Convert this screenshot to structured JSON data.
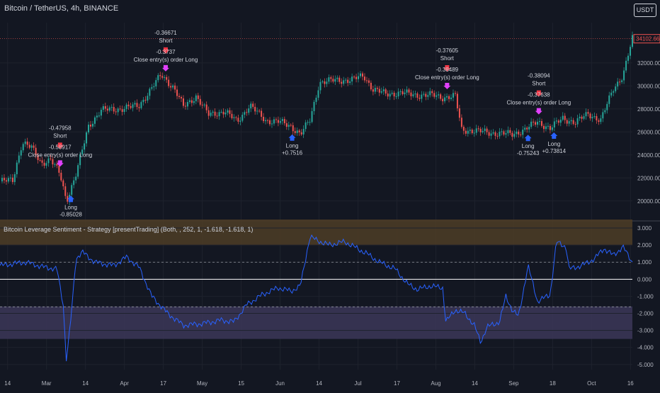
{
  "header": {
    "symbol": "Bitcoin / TetherUS, 4h, BINANCE",
    "currency": "USDT"
  },
  "indicator": {
    "title": "Bitcoin Leverage Sentiment - Strategy [presentTrading] (Both, , 252, 1, -1.618, -1.618, 1)"
  },
  "colors": {
    "background": "#131722",
    "grid": "#1e222d",
    "bull": "#26a69a",
    "bear": "#ef5350",
    "indicator_line": "#2962ff",
    "upper_band": "#4a3b26",
    "lower_band": "#3a3555",
    "short_arrow": "#f23645",
    "long_arrow": "#2962ff",
    "close_marker": "#e040fb"
  },
  "chart_data": [
    {
      "type": "line",
      "series_kind": "candlestick",
      "y_ticks": [
        "20000.00",
        "22000.00",
        "24000.00",
        "26000.00",
        "28000.00",
        "30000.00",
        "32000.00"
      ],
      "ylim": [
        19000,
        35500
      ],
      "last_price": "34102.66",
      "x": [
        "14",
        "Mar",
        "14",
        "Apr",
        "17",
        "May",
        "15",
        "Jun",
        "14",
        "Jul",
        "17",
        "Aug",
        "14",
        "Sep",
        "18",
        "Oct",
        "16"
      ],
      "price_path": [
        [
          0,
          21700
        ],
        [
          0.02,
          21800
        ],
        [
          0.035,
          25100
        ],
        [
          0.05,
          24600
        ],
        [
          0.065,
          23300
        ],
        [
          0.08,
          23600
        ],
        [
          0.095,
          22300
        ],
        [
          0.105,
          20000
        ],
        [
          0.12,
          22300
        ],
        [
          0.14,
          26500
        ],
        [
          0.16,
          27900
        ],
        [
          0.19,
          28000
        ],
        [
          0.22,
          28300
        ],
        [
          0.24,
          29800
        ],
        [
          0.255,
          31000
        ],
        [
          0.275,
          29800
        ],
        [
          0.29,
          28200
        ],
        [
          0.31,
          29100
        ],
        [
          0.33,
          27500
        ],
        [
          0.355,
          27800
        ],
        [
          0.375,
          26900
        ],
        [
          0.395,
          28300
        ],
        [
          0.42,
          27000
        ],
        [
          0.44,
          26900
        ],
        [
          0.46,
          26500
        ],
        [
          0.475,
          25800
        ],
        [
          0.49,
          27000
        ],
        [
          0.505,
          30300
        ],
        [
          0.53,
          30500
        ],
        [
          0.555,
          30500
        ],
        [
          0.575,
          30900
        ],
        [
          0.59,
          29700
        ],
        [
          0.61,
          29300
        ],
        [
          0.635,
          29400
        ],
        [
          0.66,
          29200
        ],
        [
          0.685,
          29200
        ],
        [
          0.7,
          29000
        ],
        [
          0.72,
          29100
        ],
        [
          0.73,
          26200
        ],
        [
          0.75,
          26100
        ],
        [
          0.78,
          25900
        ],
        [
          0.81,
          25800
        ],
        [
          0.83,
          26200
        ],
        [
          0.85,
          26900
        ],
        [
          0.87,
          26300
        ],
        [
          0.89,
          27200
        ],
        [
          0.91,
          26800
        ],
        [
          0.93,
          27600
        ],
        [
          0.95,
          27000
        ],
        [
          0.97,
          29800
        ],
        [
          0.985,
          30900
        ],
        [
          1.0,
          34100
        ]
      ],
      "signals": [
        {
          "side": "Short",
          "label": "Short",
          "value": "-0.47958",
          "pos": 0.095
        },
        {
          "side": "Close",
          "label": "Close entry(s) order Long",
          "value": "-0.58917",
          "pos": 0.095
        },
        {
          "side": "Long",
          "label": "Long",
          "value": "-0.85028",
          "pos": 0.112
        },
        {
          "side": "Short",
          "label": "Short",
          "value": "-0.36671",
          "pos": 0.262
        },
        {
          "side": "Close",
          "label": "Close entry(s) order Long",
          "value": "-0.3737",
          "pos": 0.262
        },
        {
          "side": "Long",
          "label": "Long",
          "value": "+0.7516",
          "pos": 0.462
        },
        {
          "side": "Short",
          "label": "Short",
          "value": "-0.37605",
          "pos": 0.707
        },
        {
          "side": "Close",
          "label": "Close entry(s) order Long",
          "value": "-0.38489",
          "pos": 0.707
        },
        {
          "side": "Short",
          "label": "Short",
          "value": "-0.38094",
          "pos": 0.852
        },
        {
          "side": "Close",
          "label": "Close entry(s) order Long",
          "value": "-0.37638",
          "pos": 0.852
        },
        {
          "side": "Long",
          "label": "Long",
          "value": "-0.75243",
          "pos": 0.835
        },
        {
          "side": "Long",
          "label": "Long",
          "value": "+0.73814",
          "pos": 0.876
        }
      ]
    },
    {
      "type": "line",
      "series": [
        {
          "values": [
            [
              0,
              0.8
            ],
            [
              0.04,
              1.0
            ],
            [
              0.07,
              0.7
            ],
            [
              0.09,
              0.6
            ],
            [
              0.1,
              -1.5
            ],
            [
              0.105,
              -4.8
            ],
            [
              0.113,
              -2.0
            ],
            [
              0.12,
              1.2
            ],
            [
              0.13,
              1.6
            ],
            [
              0.15,
              1.0
            ],
            [
              0.18,
              0.8
            ],
            [
              0.2,
              1.3
            ],
            [
              0.22,
              0.7
            ],
            [
              0.24,
              -1.0
            ],
            [
              0.265,
              -2.0
            ],
            [
              0.29,
              -2.7
            ],
            [
              0.32,
              -2.6
            ],
            [
              0.35,
              -2.4
            ],
            [
              0.37,
              -2.5
            ],
            [
              0.39,
              -1.5
            ],
            [
              0.415,
              -0.9
            ],
            [
              0.44,
              -0.5
            ],
            [
              0.46,
              -0.7
            ],
            [
              0.475,
              -0.4
            ],
            [
              0.49,
              2.5
            ],
            [
              0.5,
              2.3
            ],
            [
              0.52,
              2.0
            ],
            [
              0.545,
              2.2
            ],
            [
              0.565,
              1.8
            ],
            [
              0.58,
              1.5
            ],
            [
              0.6,
              1.0
            ],
            [
              0.625,
              0.6
            ],
            [
              0.645,
              -0.3
            ],
            [
              0.66,
              -0.6
            ],
            [
              0.68,
              -0.4
            ],
            [
              0.7,
              -0.5
            ],
            [
              0.705,
              -2.5
            ],
            [
              0.72,
              -1.8
            ],
            [
              0.735,
              -2.0
            ],
            [
              0.75,
              -2.7
            ],
            [
              0.76,
              -3.7
            ],
            [
              0.77,
              -2.8
            ],
            [
              0.79,
              -2.5
            ],
            [
              0.8,
              -1.0
            ],
            [
              0.81,
              -1.8
            ],
            [
              0.82,
              -2.2
            ],
            [
              0.835,
              0.8
            ],
            [
              0.85,
              -1.3
            ],
            [
              0.87,
              -0.9
            ],
            [
              0.88,
              2.2
            ],
            [
              0.895,
              1.9
            ],
            [
              0.9,
              0.6
            ],
            [
              0.92,
              0.8
            ],
            [
              0.94,
              1.2
            ],
            [
              0.955,
              1.8
            ],
            [
              0.97,
              1.4
            ],
            [
              0.985,
              1.9
            ],
            [
              1.0,
              1.0
            ]
          ]
        }
      ],
      "ylim": [
        -5.3,
        3.5
      ],
      "y_ticks": [
        "3.000",
        "2.000",
        "1.000",
        "0.000",
        "-1.000",
        "-2.000",
        "-3.000",
        "-4.000",
        "-5.000"
      ],
      "bands": [
        [
          2.0,
          3.5
        ],
        [
          -1.6,
          -3.5
        ]
      ],
      "levels": {
        "upper_dashed": 1.0,
        "zero": 0.0,
        "lower_dashed": -1.618
      }
    }
  ]
}
